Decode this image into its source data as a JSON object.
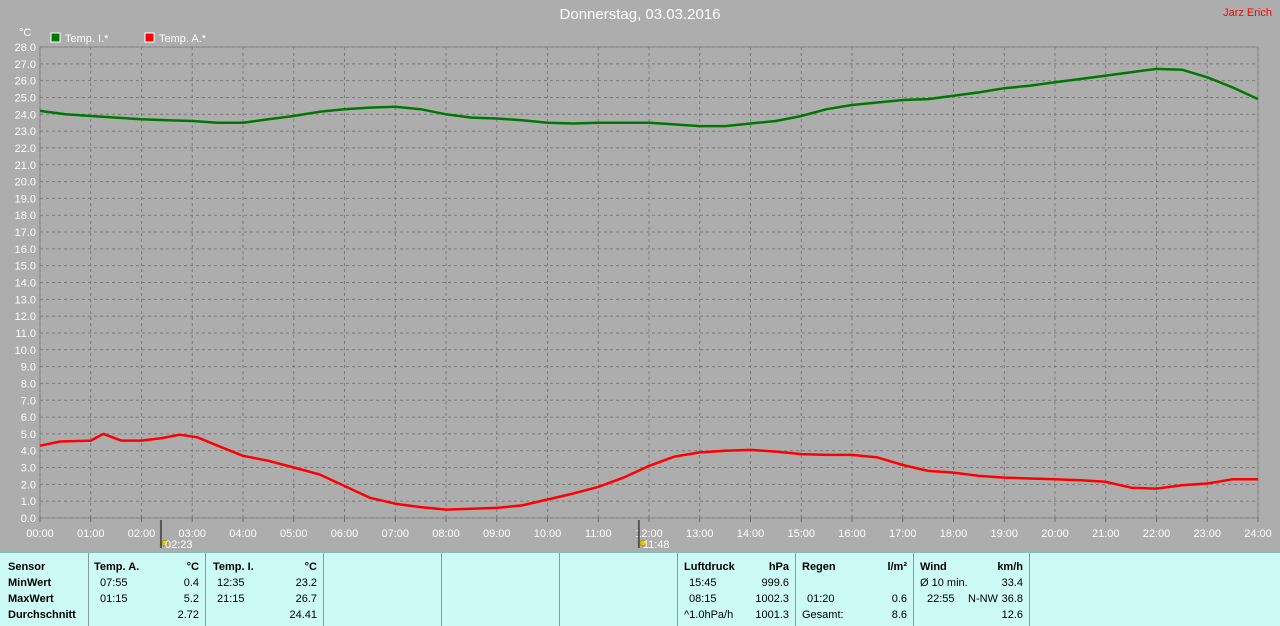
{
  "title": "Donnerstag, 03.03.2016",
  "author": "Jarz Erich",
  "colors": {
    "background": "#adadad",
    "inner": "#ff0000",
    "outer": "#ff0000",
    "innerSeries": "#007800",
    "outerSeries": "#ff0000",
    "panel": "#ccfaf4"
  },
  "chart_data": {
    "type": "line",
    "y_unit": "°C",
    "ylim": [
      0,
      28
    ],
    "y_ticks": [
      "0.0",
      "1.0",
      "2.0",
      "3.0",
      "4.0",
      "5.0",
      "6.0",
      "7.0",
      "8.0",
      "9.0",
      "10.0",
      "11.0",
      "12.0",
      "13.0",
      "14.0",
      "15.0",
      "16.0",
      "17.0",
      "18.0",
      "19.0",
      "20.0",
      "21.0",
      "22.0",
      "23.0",
      "24.0",
      "25.0",
      "26.0",
      "27.0",
      "28.0"
    ],
    "x_ticks": [
      "00:00",
      "01:00",
      "02:00",
      "03:00",
      "04:00",
      "05:00",
      "06:00",
      "07:00",
      "08:00",
      "09:00",
      "10:00",
      "11:00",
      "12:00",
      "13:00",
      "14:00",
      "15:00",
      "16:00",
      "17:00",
      "18:00",
      "19:00",
      "20:00",
      "21:00",
      "22:00",
      "23:00",
      "24:00"
    ],
    "grid": true,
    "legend": "top-left",
    "markers": [
      {
        "time": "02:23",
        "label": "02:23"
      },
      {
        "time": "11:48",
        "label": "11:48"
      }
    ],
    "series": [
      {
        "name": "Temp. I.*",
        "color": "#007800",
        "points": [
          [
            0,
            24.2
          ],
          [
            0.5,
            24.0
          ],
          [
            1,
            23.9
          ],
          [
            1.5,
            23.8
          ],
          [
            2,
            23.7
          ],
          [
            2.5,
            23.65
          ],
          [
            3,
            23.6
          ],
          [
            3.5,
            23.5
          ],
          [
            4,
            23.5
          ],
          [
            4.5,
            23.7
          ],
          [
            5,
            23.9
          ],
          [
            5.5,
            24.15
          ],
          [
            6,
            24.3
          ],
          [
            6.5,
            24.4
          ],
          [
            7,
            24.45
          ],
          [
            7.5,
            24.3
          ],
          [
            8,
            24.0
          ],
          [
            8.5,
            23.8
          ],
          [
            9,
            23.75
          ],
          [
            9.5,
            23.65
          ],
          [
            10,
            23.5
          ],
          [
            10.5,
            23.45
          ],
          [
            11,
            23.5
          ],
          [
            11.5,
            23.5
          ],
          [
            12,
            23.5
          ],
          [
            12.5,
            23.4
          ],
          [
            13,
            23.3
          ],
          [
            13.5,
            23.3
          ],
          [
            14,
            23.45
          ],
          [
            14.5,
            23.6
          ],
          [
            15,
            23.9
          ],
          [
            15.5,
            24.3
          ],
          [
            16,
            24.55
          ],
          [
            16.5,
            24.7
          ],
          [
            17,
            24.85
          ],
          [
            17.5,
            24.9
          ],
          [
            18,
            25.1
          ],
          [
            18.5,
            25.3
          ],
          [
            19,
            25.55
          ],
          [
            19.5,
            25.7
          ],
          [
            20,
            25.9
          ],
          [
            20.5,
            26.1
          ],
          [
            21,
            26.3
          ],
          [
            21.5,
            26.5
          ],
          [
            22,
            26.7
          ],
          [
            22.5,
            26.65
          ],
          [
            23,
            26.2
          ],
          [
            23.5,
            25.6
          ],
          [
            24,
            24.9
          ]
        ]
      },
      {
        "name": "Temp. A.*",
        "color": "#ff0000",
        "points": [
          [
            0,
            4.3
          ],
          [
            0.4,
            4.55
          ],
          [
            1,
            4.6
          ],
          [
            1.25,
            5.0
          ],
          [
            1.6,
            4.6
          ],
          [
            2,
            4.6
          ],
          [
            2.4,
            4.75
          ],
          [
            2.75,
            4.95
          ],
          [
            3.1,
            4.8
          ],
          [
            3.5,
            4.3
          ],
          [
            4,
            3.7
          ],
          [
            4.5,
            3.4
          ],
          [
            5,
            3.0
          ],
          [
            5.5,
            2.6
          ],
          [
            6,
            1.9
          ],
          [
            6.5,
            1.2
          ],
          [
            7,
            0.85
          ],
          [
            7.5,
            0.65
          ],
          [
            8,
            0.5
          ],
          [
            8.5,
            0.55
          ],
          [
            9,
            0.6
          ],
          [
            9.5,
            0.75
          ],
          [
            10,
            1.1
          ],
          [
            10.5,
            1.45
          ],
          [
            11,
            1.85
          ],
          [
            11.5,
            2.4
          ],
          [
            12,
            3.1
          ],
          [
            12.5,
            3.65
          ],
          [
            13,
            3.9
          ],
          [
            13.5,
            4.0
          ],
          [
            14,
            4.05
          ],
          [
            14.5,
            3.95
          ],
          [
            15,
            3.8
          ],
          [
            15.5,
            3.75
          ],
          [
            16,
            3.75
          ],
          [
            16.5,
            3.6
          ],
          [
            17,
            3.15
          ],
          [
            17.5,
            2.8
          ],
          [
            18,
            2.7
          ],
          [
            18.5,
            2.5
          ],
          [
            19,
            2.4
          ],
          [
            19.5,
            2.35
          ],
          [
            20,
            2.3
          ],
          [
            20.5,
            2.25
          ],
          [
            21,
            2.15
          ],
          [
            21.5,
            1.8
          ],
          [
            22,
            1.75
          ],
          [
            22.5,
            1.95
          ],
          [
            23,
            2.05
          ],
          [
            23.5,
            2.3
          ],
          [
            24,
            2.3
          ]
        ]
      }
    ]
  },
  "panel": {
    "sensor": {
      "header": "Sensor",
      "rows": [
        "MinWert",
        "MaxWert",
        "Durchschnitt"
      ]
    },
    "tempA": {
      "header": "Temp. A.",
      "unit": "°C",
      "min_time": "07:55",
      "min_val": "0.4",
      "max_time": "01:15",
      "max_val": "5.2",
      "avg": "2.72"
    },
    "tempI": {
      "header": "Temp. I.",
      "unit": "°C",
      "min_time": "12:35",
      "min_val": "23.2",
      "max_time": "21:15",
      "max_val": "26.7",
      "avg": "24.41"
    },
    "pressure": {
      "header": "Luftdruck",
      "unit": "hPa",
      "min_time": "15:45",
      "min_val": "999.6",
      "max_time": "08:15",
      "max_val": "1002.3",
      "trend_label": "^1.0hPa/h",
      "trend_val": "1001.3"
    },
    "rain": {
      "header": "Regen",
      "unit": "l/m²",
      "time": "01:20",
      "val": "0.6",
      "total_label": "Gesamt:",
      "total_val": "8.6"
    },
    "wind": {
      "header": "Wind",
      "unit": "km/h",
      "avg_label": "Ø 10 min.",
      "avg_val": "33.4",
      "max_time": "22:55",
      "max_dir": "N-NW",
      "max_val": "36.8",
      "last_val": "12.6"
    }
  }
}
